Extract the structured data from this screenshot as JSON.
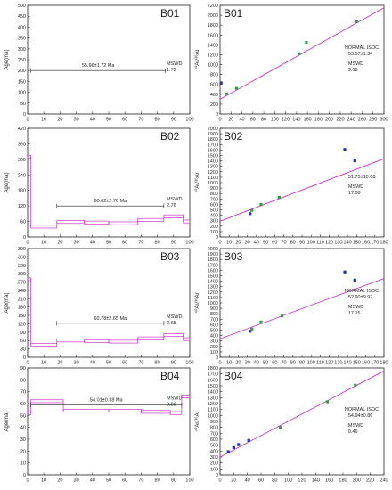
{
  "figure": {
    "colors": {
      "age_line": "#cc33cc",
      "isochron_line": "#cc33cc",
      "point_green": "#2ea043",
      "point_blue": "#1f2fbf",
      "axis": "#222222"
    }
  },
  "chart_data": [
    {
      "type": "line",
      "label": "B01",
      "ylabel": "Age(ma)",
      "xlim": [
        0,
        100
      ],
      "ylim": [
        0,
        500
      ],
      "xticks": [
        0,
        10,
        20,
        30,
        40,
        50,
        60,
        70,
        80,
        90,
        100
      ],
      "yticks": [
        0,
        50,
        100,
        150,
        200,
        250,
        300,
        350,
        400,
        450,
        500
      ],
      "age_label": "55.96±1.72 Ma",
      "mswd_label": "MSWD",
      "mswd_value": "1.72",
      "steps": [],
      "plateau": {
        "x": [
          2,
          85
        ],
        "y": 200
      }
    },
    {
      "type": "scatter",
      "label": "B01",
      "ylabel": "⁴⁰Ar/³⁶Ar",
      "xlim": [
        0,
        300
      ],
      "ylim": [
        0,
        2200
      ],
      "xticks": [
        0,
        20,
        40,
        60,
        80,
        100,
        120,
        140,
        160,
        180,
        200,
        220,
        240,
        260,
        280,
        300
      ],
      "yticks": [
        0,
        200,
        400,
        600,
        800,
        1000,
        1200,
        1400,
        1600,
        1800,
        2000,
        2200
      ],
      "iso_label": "NORMAL ISOC",
      "age_label": "53.57±1.34",
      "mswd_label": "MSWD",
      "mswd_value": "9.58",
      "fit": {
        "x": [
          0,
          300
        ],
        "y": [
          300,
          2150
        ]
      },
      "points": [
        {
          "x": 2,
          "y": 630,
          "c": "blue"
        },
        {
          "x": 12,
          "y": 410,
          "c": "green"
        },
        {
          "x": 30,
          "y": 520,
          "c": "green"
        },
        {
          "x": 145,
          "y": 1220,
          "c": "green"
        },
        {
          "x": 158,
          "y": 1450,
          "c": "green"
        },
        {
          "x": 250,
          "y": 1870,
          "c": "green"
        }
      ]
    },
    {
      "type": "line",
      "label": "B02",
      "ylabel": "Age(ma)",
      "xlim": [
        0,
        100
      ],
      "ylim": [
        0,
        420
      ],
      "xticks": [
        0,
        10,
        20,
        30,
        40,
        50,
        60,
        70,
        80,
        90,
        100
      ],
      "yticks": [
        0,
        60,
        120,
        180,
        240,
        300,
        360,
        420
      ],
      "age_label": "60.62±2.76 Ma",
      "mswd_label": "MSWD",
      "mswd_value": "2.76",
      "steps": [
        [
          0,
          2,
          310
        ],
        [
          2,
          18,
          40
        ],
        [
          18,
          35,
          58
        ],
        [
          35,
          50,
          56
        ],
        [
          50,
          68,
          53
        ],
        [
          68,
          84,
          66
        ],
        [
          84,
          96,
          80
        ],
        [
          96,
          100,
          60
        ]
      ],
      "plateau": {
        "x": [
          18,
          84
        ],
        "y": 120
      }
    },
    {
      "type": "scatter",
      "label": "B02",
      "ylabel": "⁴⁰Ar/³⁶Ar",
      "xlim": [
        0,
        180
      ],
      "ylim": [
        0,
        2000
      ],
      "xticks": [
        0,
        10,
        20,
        30,
        40,
        50,
        60,
        70,
        80,
        90,
        100,
        110,
        120,
        130,
        140,
        150,
        160,
        170,
        180
      ],
      "yticks": [
        0,
        100,
        200,
        300,
        400,
        500,
        600,
        700,
        800,
        900,
        1000,
        1100,
        1200,
        1300,
        1400,
        1500,
        1600,
        1700,
        1800,
        1900,
        2000
      ],
      "iso_label": "",
      "age_label": "51.73±10.68",
      "mswd_label": "MSWD",
      "mswd_value": "17.08",
      "fit": {
        "x": [
          0,
          180
        ],
        "y": [
          290,
          1440
        ]
      },
      "points": [
        {
          "x": 33,
          "y": 430,
          "c": "blue"
        },
        {
          "x": 35,
          "y": 490,
          "c": "green"
        },
        {
          "x": 45,
          "y": 600,
          "c": "green"
        },
        {
          "x": 65,
          "y": 730,
          "c": "green"
        },
        {
          "x": 137,
          "y": 1610,
          "c": "blue"
        },
        {
          "x": 148,
          "y": 1400,
          "c": "blue"
        }
      ]
    },
    {
      "type": "line",
      "label": "B03",
      "ylabel": "Age(ma)",
      "xlim": [
        0,
        100
      ],
      "ylim": [
        0,
        390
      ],
      "xticks": [
        0,
        10,
        20,
        30,
        40,
        50,
        60,
        70,
        80,
        90,
        100
      ],
      "yticks": [
        0,
        30,
        60,
        90,
        120,
        150,
        180,
        210,
        240,
        270,
        300,
        330,
        360,
        390
      ],
      "age_label": "60.78±2.65 Ma",
      "mswd_label": "MSWD",
      "mswd_value": "2.65",
      "steps": [
        [
          0,
          2,
          280
        ],
        [
          2,
          18,
          45
        ],
        [
          18,
          35,
          60
        ],
        [
          35,
          50,
          58
        ],
        [
          50,
          68,
          56
        ],
        [
          68,
          84,
          68
        ],
        [
          84,
          96,
          80
        ],
        [
          96,
          100,
          65
        ]
      ],
      "plateau": {
        "x": [
          18,
          84
        ],
        "y": 122
      }
    },
    {
      "type": "scatter",
      "label": "B03",
      "ylabel": "⁴⁰Ar/³⁶Ar",
      "xlim": [
        0,
        180
      ],
      "ylim": [
        0,
        2000
      ],
      "xticks": [
        0,
        10,
        20,
        30,
        40,
        50,
        60,
        70,
        80,
        90,
        100,
        110,
        120,
        130,
        140,
        150,
        160,
        170,
        180
      ],
      "yticks": [
        0,
        100,
        200,
        300,
        400,
        500,
        600,
        700,
        800,
        900,
        1000,
        1100,
        1200,
        1300,
        1400,
        1500,
        1600,
        1700,
        1800,
        1900,
        2000
      ],
      "iso_label": "NORMAL ISOC",
      "age_label": "52.90±9.97",
      "mswd_label": "MSWD",
      "mswd_value": "17.15",
      "fit": {
        "x": [
          0,
          180
        ],
        "y": [
          340,
          1450
        ]
      },
      "points": [
        {
          "x": 33,
          "y": 480,
          "c": "blue"
        },
        {
          "x": 35,
          "y": 520,
          "c": "green"
        },
        {
          "x": 45,
          "y": 650,
          "c": "green"
        },
        {
          "x": 68,
          "y": 760,
          "c": "green"
        },
        {
          "x": 137,
          "y": 1570,
          "c": "blue"
        },
        {
          "x": 148,
          "y": 1420,
          "c": "blue"
        }
      ]
    },
    {
      "type": "line",
      "label": "B04",
      "ylabel": "Age(ma)",
      "xlim": [
        0,
        100
      ],
      "ylim": [
        0,
        90
      ],
      "xticks": [
        0,
        10,
        20,
        30,
        40,
        50,
        60,
        70,
        80,
        90,
        100
      ],
      "yticks": [
        0,
        10,
        20,
        30,
        40,
        50,
        60,
        70,
        80,
        90
      ],
      "age_label": "54.01±0.38 Ma",
      "mswd_label": "MSWD",
      "mswd_value": "0.89",
      "steps": [
        [
          0,
          2,
          52
        ],
        [
          2,
          22,
          62
        ],
        [
          22,
          50,
          54
        ],
        [
          50,
          70,
          54
        ],
        [
          70,
          88,
          53
        ],
        [
          88,
          95,
          52
        ],
        [
          95,
          100,
          66
        ]
      ],
      "plateau": {
        "x": [
          2,
          95
        ],
        "y": 59
      }
    },
    {
      "type": "scatter",
      "label": "B04",
      "ylabel": "⁴⁰Ar/³⁶Ar",
      "xlim": [
        0,
        240
      ],
      "ylim": [
        0,
        1800
      ],
      "xticks": [
        0,
        20,
        40,
        60,
        80,
        100,
        120,
        140,
        160,
        180,
        200,
        220,
        240
      ],
      "yticks": [
        0,
        100,
        200,
        300,
        400,
        500,
        600,
        700,
        800,
        900,
        1000,
        1100,
        1200,
        1300,
        1400,
        1500,
        1600,
        1700,
        1800
      ],
      "iso_label": "NORMAL ISOC",
      "age_label": "54.94±0.86",
      "mswd_label": "MSWD",
      "mswd_value": "0.46",
      "fit": {
        "x": [
          0,
          240
        ],
        "y": [
          300,
          1750
        ]
      },
      "points": [
        {
          "x": 12,
          "y": 390,
          "c": "blue"
        },
        {
          "x": 20,
          "y": 460,
          "c": "blue"
        },
        {
          "x": 27,
          "y": 510,
          "c": "blue"
        },
        {
          "x": 42,
          "y": 580,
          "c": "blue"
        },
        {
          "x": 88,
          "y": 800,
          "c": "green"
        },
        {
          "x": 157,
          "y": 1230,
          "c": "green"
        },
        {
          "x": 198,
          "y": 1510,
          "c": "green"
        }
      ]
    }
  ]
}
